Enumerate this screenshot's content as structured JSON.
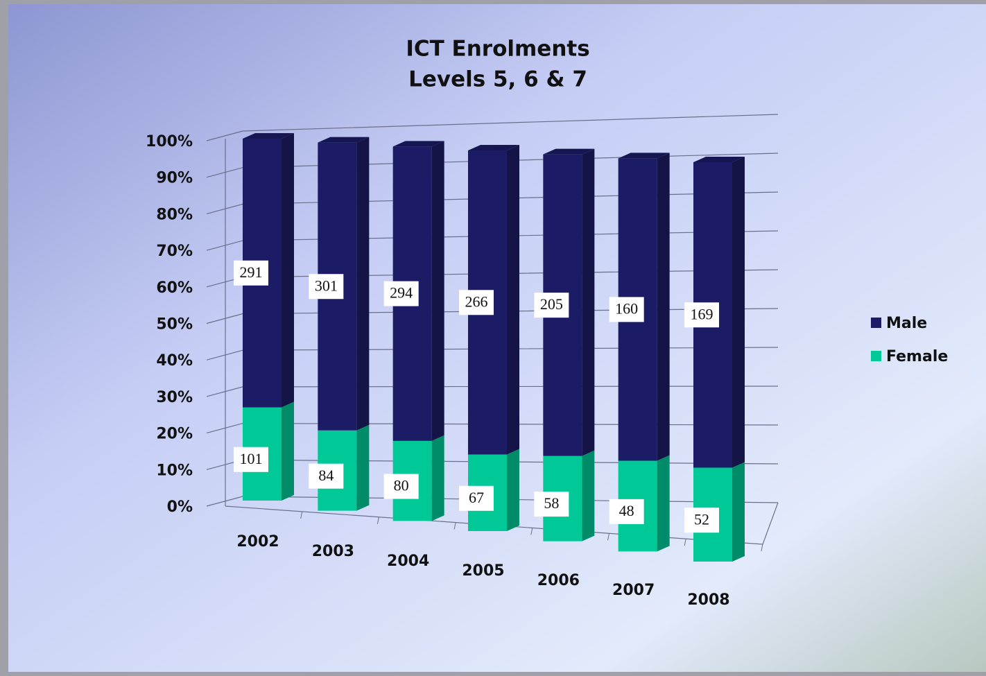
{
  "chart_data": {
    "type": "bar",
    "stacking": "percent",
    "title": [
      "ICT Enrolments",
      "Levels 5, 6 & 7"
    ],
    "categories": [
      "2002",
      "2003",
      "2004",
      "2005",
      "2006",
      "2007",
      "2008"
    ],
    "series": [
      {
        "name": "Female",
        "color": "#00c896",
        "values": [
          101,
          84,
          80,
          67,
          58,
          48,
          52
        ]
      },
      {
        "name": "Male",
        "color": "#1c1c66",
        "values": [
          291,
          301,
          294,
          266,
          205,
          160,
          169
        ]
      }
    ],
    "ylim": [
      0,
      100
    ],
    "yticks": [
      {
        "value": 0,
        "label": "0%"
      },
      {
        "value": 10,
        "label": "10%"
      },
      {
        "value": 20,
        "label": "20%"
      },
      {
        "value": 30,
        "label": "30%"
      },
      {
        "value": 40,
        "label": "40%"
      },
      {
        "value": 50,
        "label": "50%"
      },
      {
        "value": 60,
        "label": "60%"
      },
      {
        "value": 70,
        "label": "70%"
      },
      {
        "value": 80,
        "label": "80%"
      },
      {
        "value": 90,
        "label": "90%"
      },
      {
        "value": 100,
        "label": "100%"
      }
    ],
    "grid": true,
    "legend": "right"
  }
}
